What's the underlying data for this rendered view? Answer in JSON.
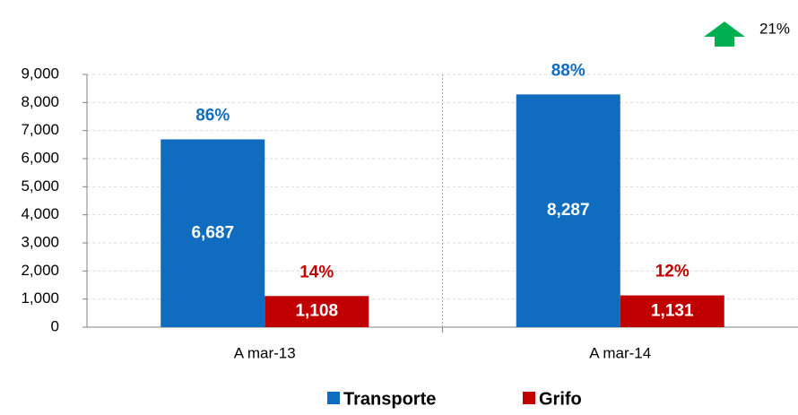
{
  "chart_data": {
    "type": "bar",
    "categories": [
      "A mar-13",
      "A mar-14"
    ],
    "series": [
      {
        "name": "Transporte",
        "color": "#0f6cbf",
        "values": [
          6687,
          8287
        ],
        "value_labels": [
          "6,687",
          "8,287"
        ],
        "percent_labels": [
          "86%",
          "88%"
        ]
      },
      {
        "name": "Grifo",
        "color": "#c00000",
        "values": [
          1108,
          1131
        ],
        "value_labels": [
          "1,108",
          "1,131"
        ],
        "percent_labels": [
          "14%",
          "12%"
        ]
      }
    ],
    "ylim": [
      0,
      9000
    ],
    "yticks": [
      0,
      {
        "value": 1000,
        "label": "1,000"
      },
      {
        "value": 2000,
        "label": "2,000"
      },
      {
        "value": 3000,
        "label": "3,000"
      },
      {
        "value": 4000,
        "label": "4,000"
      },
      {
        "value": 5000,
        "label": "5,000"
      },
      {
        "value": 6000,
        "label": "6,000"
      },
      {
        "value": 7000,
        "label": "7,000"
      },
      {
        "value": 8000,
        "label": "8,000"
      },
      {
        "value": 9000,
        "label": "9,000"
      }
    ],
    "grid": true,
    "growth_label": "21%",
    "growth_color": "#00b050"
  }
}
